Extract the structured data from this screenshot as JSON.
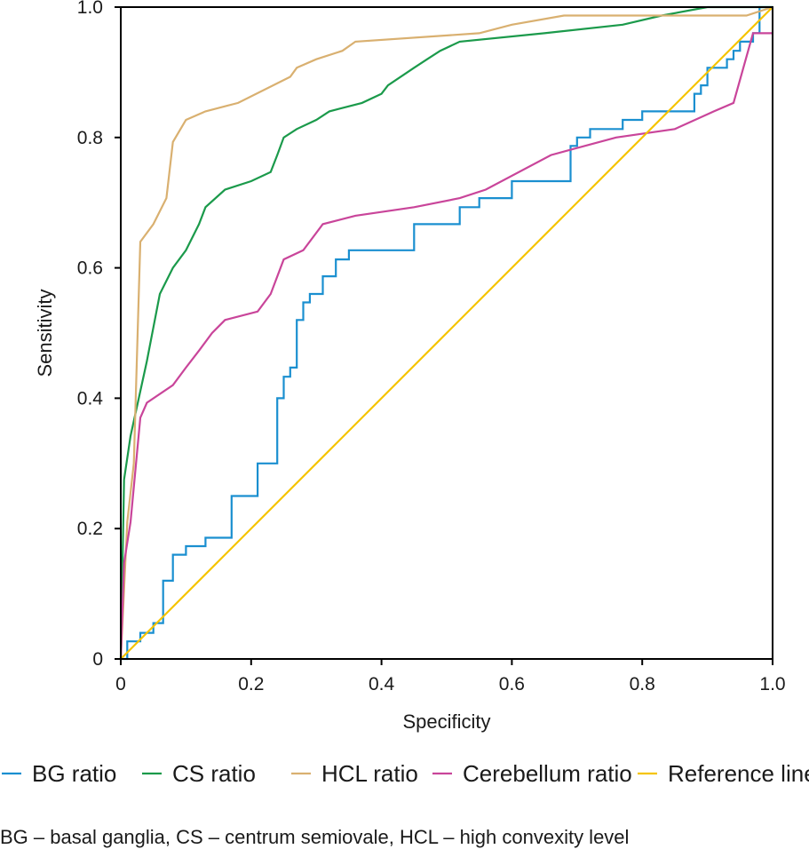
{
  "footnote": "BG – basal ganglia, CS – centrum semiovale, HCL – high convexity level",
  "chart_data": {
    "type": "line",
    "title": "",
    "xlabel": "Specificity",
    "ylabel": "Sensitivity",
    "xlim": [
      0,
      1
    ],
    "ylim": [
      0,
      1
    ],
    "xticks": [
      {
        "value": 0,
        "label": "0"
      },
      {
        "value": 0.2,
        "label": "0.2"
      },
      {
        "value": 0.4,
        "label": "0.4"
      },
      {
        "value": 0.6,
        "label": "0.6"
      },
      {
        "value": 0.8,
        "label": "0.8"
      },
      {
        "value": 1.0,
        "label": "1.0"
      }
    ],
    "yticks": [
      {
        "value": 0,
        "label": "0"
      },
      {
        "value": 0.2,
        "label": "0.2"
      },
      {
        "value": 0.4,
        "label": "0.4"
      },
      {
        "value": 0.6,
        "label": "0.6"
      },
      {
        "value": 0.8,
        "label": "0.8"
      },
      {
        "value": 1.0,
        "label": "1.0"
      }
    ],
    "grid": false,
    "legend_position": "bottom",
    "series": [
      {
        "name": "BG ratio",
        "color": "#1a8fd0",
        "x": [
          0,
          0.01,
          0.01,
          0.03,
          0.03,
          0.05,
          0.05,
          0.065,
          0.065,
          0.08,
          0.08,
          0.1,
          0.1,
          0.13,
          0.13,
          0.17,
          0.17,
          0.21,
          0.21,
          0.24,
          0.24,
          0.25,
          0.25,
          0.26,
          0.26,
          0.27,
          0.27,
          0.28,
          0.28,
          0.29,
          0.29,
          0.31,
          0.31,
          0.33,
          0.33,
          0.35,
          0.35,
          0.45,
          0.45,
          0.52,
          0.52,
          0.55,
          0.55,
          0.6,
          0.6,
          0.69,
          0.69,
          0.7,
          0.7,
          0.72,
          0.72,
          0.77,
          0.77,
          0.8,
          0.8,
          0.88,
          0.88,
          0.89,
          0.89,
          0.9,
          0.9,
          0.93,
          0.93,
          0.94,
          0.94,
          0.95,
          0.95,
          0.97,
          0.97,
          0.98,
          0.98,
          1.0
        ],
        "y": [
          0,
          0,
          0.027,
          0.027,
          0.04,
          0.04,
          0.055,
          0.055,
          0.12,
          0.12,
          0.16,
          0.16,
          0.173,
          0.173,
          0.186,
          0.186,
          0.25,
          0.25,
          0.3,
          0.3,
          0.4,
          0.4,
          0.433,
          0.433,
          0.447,
          0.447,
          0.52,
          0.52,
          0.547,
          0.547,
          0.56,
          0.56,
          0.587,
          0.587,
          0.613,
          0.613,
          0.627,
          0.627,
          0.667,
          0.667,
          0.693,
          0.693,
          0.707,
          0.707,
          0.733,
          0.733,
          0.787,
          0.787,
          0.8,
          0.8,
          0.813,
          0.813,
          0.827,
          0.827,
          0.84,
          0.84,
          0.867,
          0.867,
          0.88,
          0.88,
          0.907,
          0.907,
          0.92,
          0.92,
          0.933,
          0.933,
          0.947,
          0.947,
          0.96,
          0.96,
          1.0,
          1.0
        ]
      },
      {
        "name": "CS ratio",
        "color": "#1b9a4b",
        "x": [
          0,
          0.005,
          0.005,
          0.015,
          0.015,
          0.04,
          0.04,
          0.06,
          0.06,
          0.08,
          0.08,
          0.1,
          0.1,
          0.12,
          0.12,
          0.13,
          0.13,
          0.16,
          0.16,
          0.2,
          0.2,
          0.23,
          0.23,
          0.24,
          0.24,
          0.25,
          0.25,
          0.27,
          0.27,
          0.3,
          0.3,
          0.32,
          0.32,
          0.37,
          0.37,
          0.4,
          0.4,
          0.41,
          0.41,
          0.45,
          0.45,
          0.47,
          0.47,
          0.49,
          0.49,
          0.52,
          0.52,
          0.65,
          0.65,
          0.77,
          0.77,
          0.83,
          0.83,
          0.9,
          0.9,
          0.93,
          0.93,
          0.96,
          0.96,
          1.0
        ],
        "y": [
          0,
          0.275,
          0.275,
          0.342,
          0.342,
          0.457,
          0.457,
          0.56,
          0.56,
          0.6,
          0.6,
          0.627,
          0.627,
          0.667,
          0.667,
          0.693,
          0.693,
          0.72,
          0.72,
          0.733,
          0.733,
          0.747,
          0.747,
          0.773,
          0.773,
          0.8,
          0.8,
          0.813,
          0.813,
          0.827,
          0.827,
          0.84,
          0.84,
          0.853,
          0.853,
          0.867,
          0.867,
          0.88,
          0.88,
          0.907,
          0.907,
          0.92,
          0.92,
          0.933,
          0.933,
          0.947,
          0.947,
          0.96,
          0.96,
          0.973,
          0.973,
          0.987,
          0.987,
          1.0,
          1.0,
          1.0,
          1.0,
          1.0,
          1.0,
          1.0
        ]
      },
      {
        "name": "HCL ratio",
        "color": "#d9b070",
        "x": [
          0,
          0.01,
          0.01,
          0.02,
          0.02,
          0.03,
          0.03,
          0.05,
          0.05,
          0.07,
          0.07,
          0.08,
          0.08,
          0.1,
          0.1,
          0.13,
          0.13,
          0.18,
          0.18,
          0.26,
          0.26,
          0.27,
          0.27,
          0.3,
          0.3,
          0.34,
          0.34,
          0.36,
          0.36,
          0.55,
          0.55,
          0.6,
          0.6,
          0.68,
          0.68,
          0.96,
          0.96,
          1.0
        ],
        "y": [
          0,
          0.21,
          0.21,
          0.3,
          0.3,
          0.64,
          0.64,
          0.667,
          0.667,
          0.707,
          0.707,
          0.793,
          0.793,
          0.827,
          0.827,
          0.84,
          0.84,
          0.853,
          0.853,
          0.893,
          0.893,
          0.907,
          0.907,
          0.92,
          0.92,
          0.933,
          0.933,
          0.947,
          0.947,
          0.96,
          0.96,
          0.973,
          0.973,
          0.987,
          0.987,
          0.987,
          0.987,
          1.0
        ]
      },
      {
        "name": "Cerebellum ratio",
        "color": "#c9459a",
        "x": [
          0,
          0.005,
          0.005,
          0.015,
          0.015,
          0.03,
          0.03,
          0.04,
          0.04,
          0.08,
          0.08,
          0.1,
          0.1,
          0.12,
          0.12,
          0.14,
          0.14,
          0.16,
          0.16,
          0.21,
          0.21,
          0.23,
          0.23,
          0.25,
          0.25,
          0.28,
          0.28,
          0.31,
          0.31,
          0.36,
          0.36,
          0.45,
          0.45,
          0.52,
          0.52,
          0.56,
          0.56,
          0.66,
          0.66,
          0.76,
          0.76,
          0.85,
          0.85,
          0.91,
          0.91,
          0.94,
          0.94,
          0.97,
          0.97,
          1.0
        ],
        "y": [
          0,
          0.147,
          0.147,
          0.21,
          0.21,
          0.37,
          0.37,
          0.393,
          0.393,
          0.42,
          0.42,
          0.447,
          0.447,
          0.473,
          0.473,
          0.5,
          0.5,
          0.52,
          0.52,
          0.533,
          0.533,
          0.56,
          0.56,
          0.613,
          0.613,
          0.627,
          0.627,
          0.667,
          0.667,
          0.68,
          0.68,
          0.693,
          0.693,
          0.707,
          0.707,
          0.72,
          0.72,
          0.773,
          0.773,
          0.8,
          0.8,
          0.813,
          0.813,
          0.84,
          0.84,
          0.853,
          0.853,
          0.96,
          0.96,
          0.96
        ]
      },
      {
        "name": "Reference line",
        "color": "#f5c400",
        "x": [
          0,
          1
        ],
        "y": [
          0,
          1
        ]
      }
    ]
  }
}
